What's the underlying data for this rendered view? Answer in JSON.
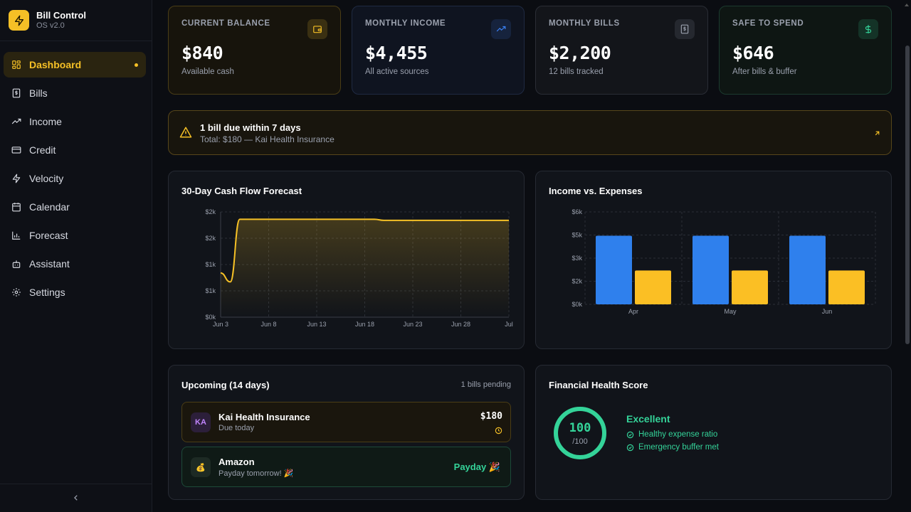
{
  "brand": {
    "title": "Bill Control",
    "subtitle": "OS v2.0"
  },
  "nav": [
    {
      "label": "Dashboard",
      "icon": "dashboard-icon",
      "active": true
    },
    {
      "label": "Bills",
      "icon": "receipt-icon"
    },
    {
      "label": "Income",
      "icon": "trending-up-icon"
    },
    {
      "label": "Credit",
      "icon": "credit-card-icon"
    },
    {
      "label": "Velocity",
      "icon": "zap-icon"
    },
    {
      "label": "Calendar",
      "icon": "calendar-icon"
    },
    {
      "label": "Forecast",
      "icon": "bar-chart-icon"
    },
    {
      "label": "Assistant",
      "icon": "bot-icon"
    },
    {
      "label": "Settings",
      "icon": "gear-icon"
    }
  ],
  "stats": [
    {
      "label": "CURRENT BALANCE",
      "value": "$840",
      "sub": "Available cash",
      "icon": "wallet-icon",
      "color": "#f5c026"
    },
    {
      "label": "MONTHLY INCOME",
      "value": "$4,455",
      "sub": "All active sources",
      "icon": "trending-up-icon",
      "color": "#3b82f6"
    },
    {
      "label": "MONTHLY BILLS",
      "value": "$2,200",
      "sub": "12 bills tracked",
      "icon": "receipt-icon",
      "color": "#9aa0ad"
    },
    {
      "label": "SAFE TO SPEND",
      "value": "$646",
      "sub": "After bills & buffer",
      "icon": "dollar-icon",
      "color": "#34d399"
    }
  ],
  "alert": {
    "title": "1 bill due within 7 days",
    "sub": "Total: $180 — Kai Health Insurance"
  },
  "cashflow": {
    "title": "30-Day Cash Flow Forecast",
    "chart_data": {
      "type": "area",
      "title": "30-Day Cash Flow Forecast",
      "x_ticks": [
        "Jun 3",
        "Jun 8",
        "Jun 13",
        "Jun 18",
        "Jun 23",
        "Jun 28",
        "Jul"
      ],
      "y_ticks": [
        "$0k",
        "$1k",
        "$1k",
        "$2k",
        "$2k"
      ],
      "ylim": [
        0,
        2000
      ],
      "x": [
        "Jun 3",
        "Jun 4",
        "Jun 5",
        "Jun 11",
        "Jun 19",
        "Jun 20",
        "Jun 25",
        "Jul 3"
      ],
      "values": [
        840,
        670,
        1860,
        1860,
        1860,
        1840,
        1840,
        1840
      ],
      "color": "#f5c026",
      "grid": true
    }
  },
  "income_expenses": {
    "title": "Income vs. Expenses",
    "chart_data": {
      "type": "bar",
      "title": "Income vs. Expenses",
      "categories": [
        "Apr",
        "May",
        "Jun"
      ],
      "y_ticks": [
        "$0k",
        "$2k",
        "$3k",
        "$5k",
        "$6k"
      ],
      "ylim": [
        0,
        6000
      ],
      "series": [
        {
          "values": [
            4455,
            4455,
            4455
          ],
          "color": "#2f80ed"
        },
        {
          "values": [
            2200,
            2200,
            2200
          ],
          "color": "#fbbf24"
        }
      ],
      "grid": true
    }
  },
  "upcoming": {
    "title": "Upcoming (14 days)",
    "pending": "1 bills pending",
    "items": [
      {
        "initials": "KA",
        "name": "Kai Health Insurance",
        "sub": "Due today",
        "amount": "$180"
      },
      {
        "icon": "money-bag-icon",
        "emoji": "💰",
        "name": "Amazon",
        "sub": "Payday tomorrow! 🎉",
        "amount": "Payday 🎉"
      }
    ]
  },
  "health": {
    "title": "Financial Health Score",
    "score": "100",
    "out_of": "/100",
    "score_fraction": 1.0,
    "status": "Excellent",
    "checks": [
      "Healthy expense ratio",
      "Emergency buffer met"
    ]
  }
}
